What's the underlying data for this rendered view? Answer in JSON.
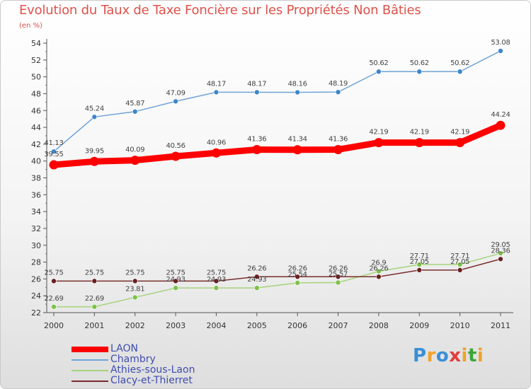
{
  "title": "Evolution du Taux de Taxe Foncière sur les Propriétés Non Bâties",
  "unit_label": "(en %)",
  "logo": {
    "text": "Proxiti",
    "colors": [
      "#3a8fd6",
      "#f0a22c",
      "#3a8fd6",
      "#e23b3b",
      "#f0a22c",
      "#3aa53a",
      "#f0a22c"
    ]
  },
  "chart_data": {
    "type": "line",
    "title": "Evolution du Taux de Taxe Foncière sur les Propriétés Non Bâties",
    "ylabel": "(en %)",
    "xlabel": "",
    "ylim": [
      22,
      54
    ],
    "yticks": [
      "22",
      "24",
      "26",
      "28",
      "30",
      "32",
      "34",
      "36",
      "38",
      "40",
      "42",
      "44",
      "46",
      "48",
      "50",
      "52",
      "54"
    ],
    "categories": [
      "2000",
      "2001",
      "2002",
      "2003",
      "2004",
      "2005",
      "2006",
      "2007",
      "2008",
      "2009",
      "2010",
      "2011"
    ],
    "grid": false,
    "legend": "bottom-left",
    "series": [
      {
        "name": "LAON",
        "color": "#ff0000",
        "emphasis": true,
        "values": [
          39.55,
          39.95,
          40.09,
          40.56,
          40.96,
          41.36,
          41.34,
          41.36,
          42.19,
          42.19,
          42.19,
          44.24
        ],
        "labels": [
          "39.55",
          "39.95",
          "40.09",
          "40.56",
          "40.96",
          "41.36",
          "41.34",
          "41.36",
          "42.19",
          "42.19",
          "42.19",
          "44.24"
        ]
      },
      {
        "name": "Chambry",
        "color": "#6fa3d8",
        "marker": "#3c86c8",
        "values": [
          41.13,
          45.24,
          45.87,
          47.09,
          48.17,
          48.17,
          48.16,
          48.19,
          50.62,
          50.62,
          50.62,
          53.08
        ],
        "labels": [
          "41.13",
          "45.24",
          "45.87",
          "47.09",
          "48.17",
          "48.17",
          "48.16",
          "48.19",
          "50.62",
          "50.62",
          "50.62",
          "53.08"
        ]
      },
      {
        "name": "Athies-sous-Laon",
        "color": "#a6d47c",
        "marker": "#7cc24a",
        "values": [
          22.69,
          22.69,
          23.81,
          24.93,
          24.93,
          24.93,
          25.54,
          25.57,
          26.9,
          27.71,
          27.71,
          29.05
        ],
        "labels": [
          "22.69",
          "22.69",
          "23.81",
          "24.93",
          "24.93",
          "24.93",
          "25.54",
          "25.57",
          "26.9",
          "27.71",
          "27.71",
          "29.05"
        ]
      },
      {
        "name": "Clacy-et-Thierret",
        "color": "#7a2d2d",
        "marker": "#6a1f1f",
        "values": [
          25.75,
          25.75,
          25.75,
          25.75,
          25.75,
          26.26,
          26.26,
          26.26,
          26.26,
          27.05,
          27.05,
          28.36
        ],
        "labels": [
          "25.75",
          "25.75",
          "25.75",
          "25.75",
          "25.75",
          "26.26",
          "26.26",
          "26.26",
          "26.26",
          "27.05",
          "27.05",
          "28.36"
        ]
      }
    ]
  }
}
